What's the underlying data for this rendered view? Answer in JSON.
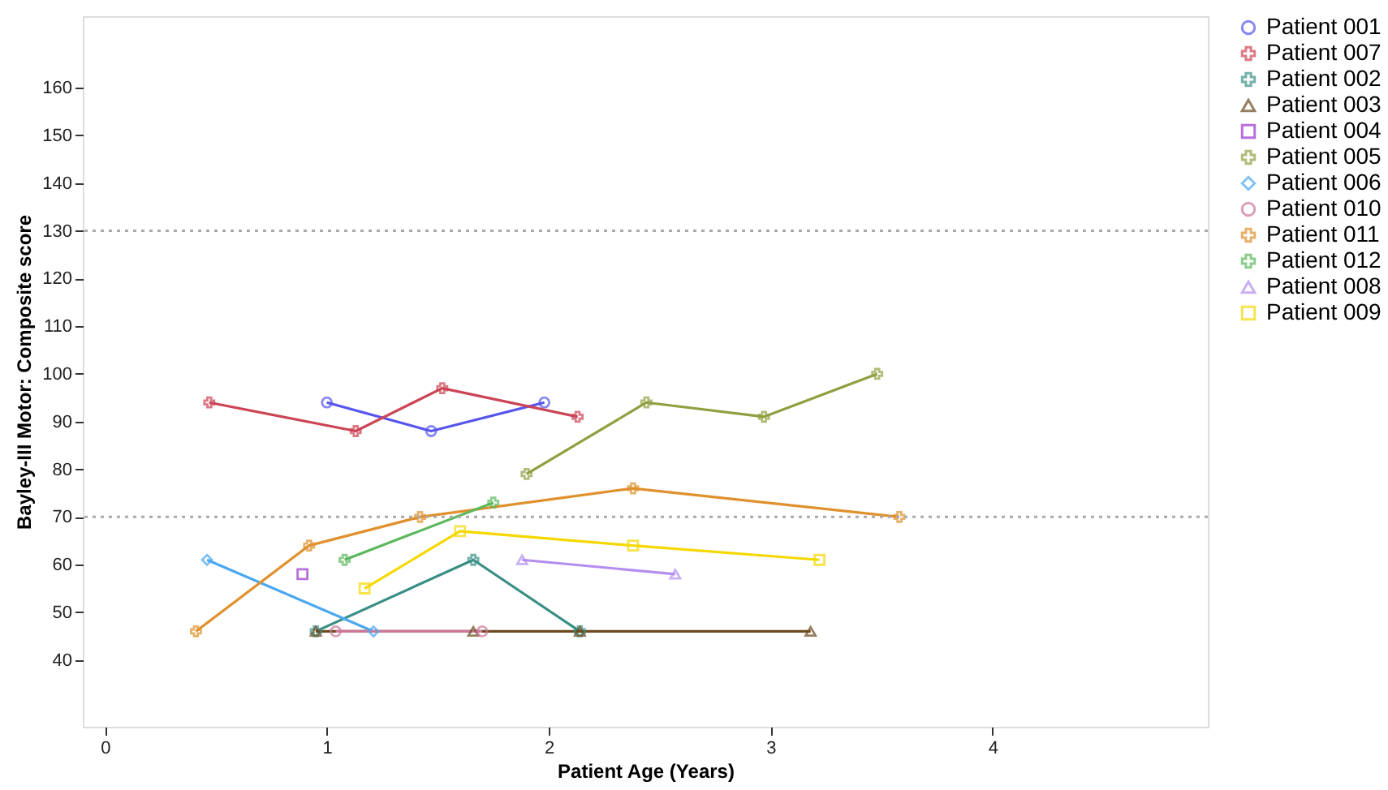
{
  "chart_data": {
    "type": "line",
    "xlabel": "Patient Age (Years)",
    "ylabel": "Bayley-III Motor: Composite score",
    "xlim": [
      -0.1,
      4.97
    ],
    "ylim": [
      26,
      175
    ],
    "xticks": [
      0,
      1,
      2,
      3,
      4
    ],
    "yticks": [
      40,
      50,
      60,
      70,
      80,
      90,
      100,
      110,
      120,
      130,
      140,
      150,
      160
    ],
    "grid": false,
    "legend": "right",
    "line_style": "solid",
    "ref_lines": [
      {
        "axis": "y",
        "value": 130,
        "color": "#aaaaaa",
        "line_style": "dotted"
      },
      {
        "axis": "y",
        "value": 70,
        "color": "#aaaaaa",
        "line_style": "dotted"
      }
    ],
    "series": [
      {
        "name": "Patient 001",
        "color": "#5555ee",
        "marker": "circle",
        "x": [
          1.0,
          1.47,
          1.98
        ],
        "values": [
          94,
          88,
          94
        ]
      },
      {
        "name": "Patient 007",
        "color": "#cc4455",
        "marker": "cross",
        "x": [
          0.47,
          1.13,
          1.52,
          2.13
        ],
        "values": [
          94,
          88,
          97,
          91
        ]
      },
      {
        "name": "Patient 002",
        "color": "#3a8f85",
        "marker": "cross",
        "x": [
          0.95,
          1.66,
          2.14
        ],
        "values": [
          46,
          61,
          46
        ]
      },
      {
        "name": "Patient 003",
        "color": "#6b4a1e",
        "marker": "triangle",
        "x": [
          0.95,
          1.66,
          2.14,
          3.18
        ],
        "values": [
          46,
          46,
          46,
          46
        ]
      },
      {
        "name": "Patient 004",
        "color": "#9933cc",
        "marker": "square",
        "x": [
          0.89
        ],
        "values": [
          58
        ]
      },
      {
        "name": "Patient 005",
        "color": "#8fa040",
        "marker": "cross",
        "x": [
          1.9,
          2.44,
          2.97,
          3.48
        ],
        "values": [
          79,
          94,
          91,
          100
        ]
      },
      {
        "name": "Patient 006",
        "color": "#4aa8f0",
        "marker": "diamond",
        "x": [
          0.46,
          1.21
        ],
        "values": [
          61,
          46
        ]
      },
      {
        "name": "Patient 010",
        "color": "#cc7799",
        "marker": "circle",
        "x": [
          1.04,
          1.7
        ],
        "values": [
          46,
          46
        ]
      },
      {
        "name": "Patient 011",
        "color": "#e0902c",
        "marker": "cross",
        "x": [
          0.41,
          0.92,
          1.42,
          2.38,
          3.58
        ],
        "values": [
          46,
          64,
          70,
          76,
          70
        ]
      },
      {
        "name": "Patient 012",
        "color": "#5cb85c",
        "marker": "cross",
        "x": [
          1.08,
          1.75
        ],
        "values": [
          61,
          73
        ]
      },
      {
        "name": "Patient 008",
        "color": "#b38ef0",
        "marker": "triangle",
        "x": [
          1.88,
          2.57
        ],
        "values": [
          61,
          58
        ]
      },
      {
        "name": "Patient 009",
        "color": "#f5d800",
        "marker": "square",
        "x": [
          1.17,
          1.6,
          2.38,
          3.22
        ],
        "values": [
          55,
          67,
          64,
          61
        ]
      }
    ]
  }
}
